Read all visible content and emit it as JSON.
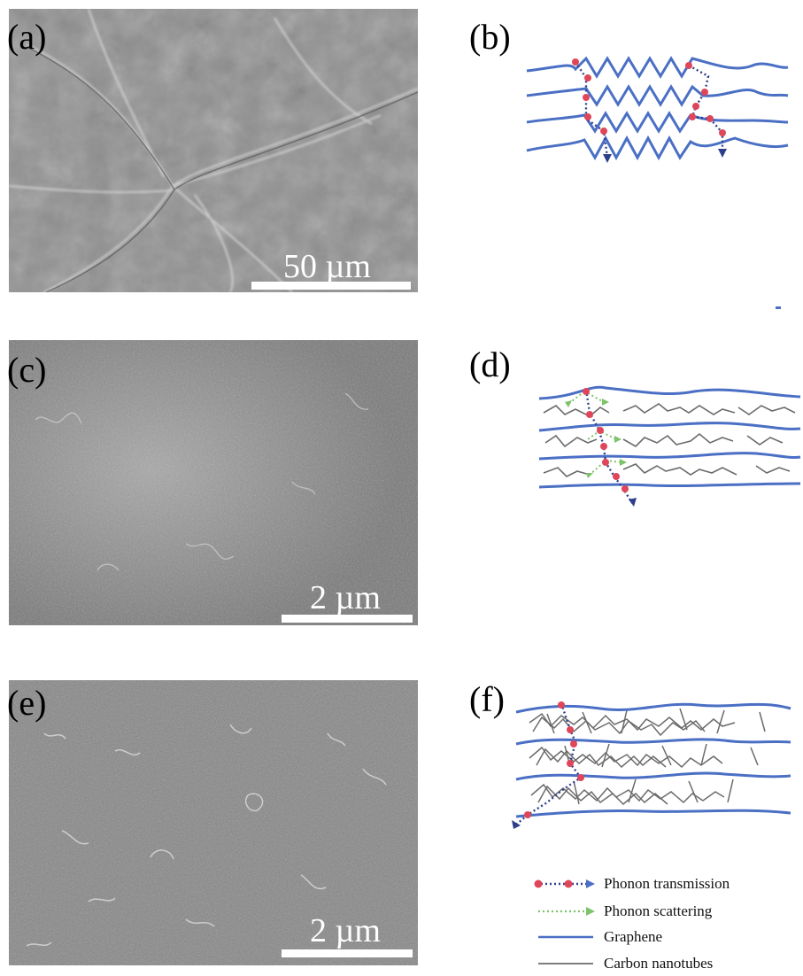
{
  "panels": {
    "a": {
      "letter": "(a)",
      "scale": "50 µm"
    },
    "b": {
      "letter": "(b)"
    },
    "c": {
      "letter": "(c)",
      "scale": "2 µm"
    },
    "d": {
      "letter": "(d)"
    },
    "e": {
      "letter": "(e)",
      "scale": "2 µm"
    },
    "f": {
      "letter": "(f)"
    }
  },
  "legend": {
    "items": [
      {
        "label": "Phonon transmission",
        "symbol": "red-dot-blue-dotted-arrow"
      },
      {
        "label": "Phonon scattering",
        "symbol": "green-dotted-arrow"
      },
      {
        "label": "Graphene",
        "symbol": "blue-line"
      },
      {
        "label": "Carbon nanotubes",
        "symbol": "gray-line"
      }
    ]
  },
  "colors": {
    "graphene": "#4a6fc4",
    "nanotube": "#6b6b6b",
    "phonon_dot": "#e0465a",
    "phonon_path": "#2d3f8a",
    "scatter": "#7cc36a",
    "sem_bg": "#8d8d8d"
  }
}
